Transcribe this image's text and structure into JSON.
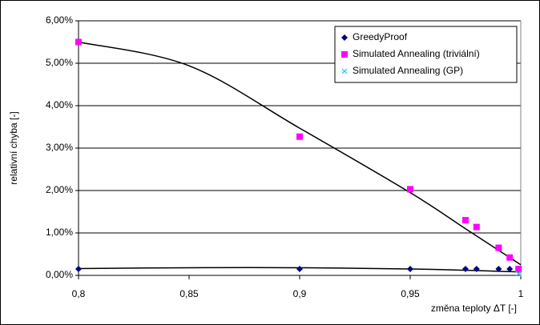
{
  "chart_data": {
    "type": "scatter",
    "x_label": "změna teploty ΔT [-]",
    "y_label": "relativní chyba [-]",
    "xlim": [
      0.8,
      1
    ],
    "ylim": [
      0,
      6
    ],
    "xticks": [
      {
        "value": 0.8,
        "label": "0,8"
      },
      {
        "value": 0.85,
        "label": "0,85"
      },
      {
        "value": 0.9,
        "label": "0,9"
      },
      {
        "value": 0.95,
        "label": "0,95"
      },
      1
    ],
    "yticks": [
      {
        "value": 0,
        "label": "0,00%"
      },
      {
        "value": 1,
        "label": "1,00%"
      },
      {
        "value": 2,
        "label": "2,00%"
      },
      {
        "value": 3,
        "label": "3,00%"
      },
      {
        "value": 4,
        "label": "4,00%"
      },
      {
        "value": 5,
        "label": "5,00%"
      },
      {
        "value": 6,
        "label": "6,00%"
      }
    ],
    "grid": true,
    "legend": "top-right",
    "series": [
      {
        "name": "GreedyProof",
        "color": "#000080",
        "marker": "diamond",
        "x": [
          0.8,
          0.9,
          0.95,
          0.975,
          0.98,
          0.99,
          0.995,
          0.999
        ],
        "values": [
          0.15,
          0.15,
          0.15,
          0.15,
          0.15,
          0.15,
          0.15,
          0.15
        ],
        "trendline": {
          "x": [
            0.8,
            0.85,
            0.9,
            0.95,
            0.975,
            1
          ],
          "values": [
            0.16,
            0.18,
            0.18,
            0.15,
            0.12,
            0.08
          ]
        }
      },
      {
        "name": "Simulated Annealing (triviální)",
        "color": "#ff00ff",
        "marker": "square",
        "x": [
          0.8,
          0.9,
          0.95,
          0.975,
          0.98,
          0.99,
          0.995,
          0.999
        ],
        "values": [
          5.5,
          3.27,
          2.03,
          1.3,
          1.14,
          0.65,
          0.42,
          0.15
        ],
        "trendline": {
          "x": [
            0.8,
            0.85,
            0.9,
            0.95,
            0.975,
            1
          ],
          "values": [
            5.5,
            4.94,
            3.47,
            1.95,
            1.1,
            0.25
          ]
        }
      },
      {
        "name": "Simulated Annealing (GP)",
        "color": "#00ccff",
        "marker": "x",
        "x": [
          0.999
        ],
        "values": [
          0.04
        ]
      }
    ]
  }
}
